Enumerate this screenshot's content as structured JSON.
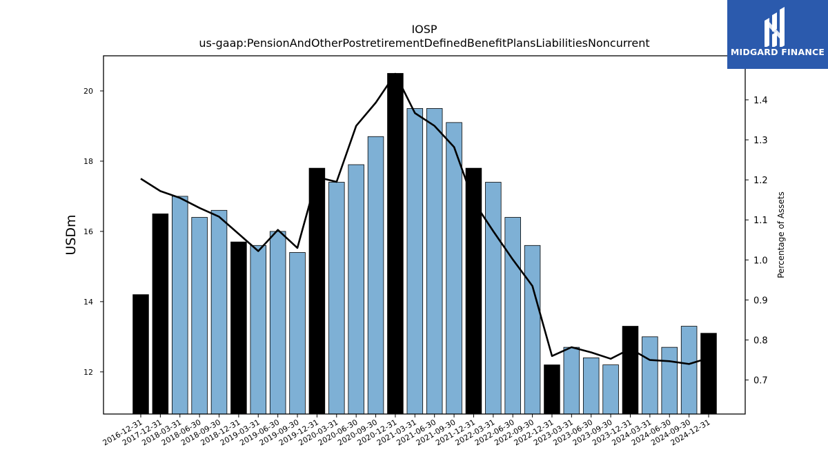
{
  "chart_data": {
    "type": "bar",
    "title": "IOSP",
    "subtitle": "us-gaap:PensionAndOtherPostretirementDefinedBenefitPlansLiabilitiesNoncurrent",
    "ylabel": "USDm",
    "ylabel_right": "Percentage of Assets",
    "ylim": [
      10.8,
      21.0
    ],
    "ylim_right": [
      0.615,
      1.51
    ],
    "yticks": [
      12,
      14,
      16,
      18,
      20
    ],
    "yticks_right": [
      0.7,
      0.8,
      0.9,
      1.0,
      1.1,
      1.2,
      1.3,
      1.4
    ],
    "categories": [
      "2016-12-31",
      "2017-12-31",
      "2018-03-31",
      "2018-06-30",
      "2018-09-30",
      "2018-12-31",
      "2019-03-31",
      "2019-06-30",
      "2019-09-30",
      "2019-12-31",
      "2020-03-31",
      "2020-06-30",
      "2020-09-30",
      "2020-12-31",
      "2021-03-31",
      "2021-06-30",
      "2021-09-30",
      "2021-12-31",
      "2022-03-31",
      "2022-06-30",
      "2022-09-30",
      "2022-12-31",
      "2023-03-31",
      "2023-06-30",
      "2023-09-30",
      "2023-12-31",
      "2024-03-31",
      "2024-06-30",
      "2024-09-30",
      "2024-12-31"
    ],
    "series": [
      {
        "axis": "left",
        "kind": "bar",
        "values": [
          14.2,
          16.5,
          17.0,
          16.4,
          16.6,
          15.7,
          15.6,
          16.0,
          15.4,
          17.8,
          17.4,
          17.9,
          18.7,
          20.5,
          19.5,
          19.5,
          19.1,
          17.8,
          17.4,
          16.4,
          15.6,
          12.2,
          12.7,
          12.4,
          12.2,
          13.3,
          13.0,
          12.7,
          13.3,
          13.1
        ],
        "highlight": [
          true,
          true,
          false,
          false,
          false,
          true,
          false,
          false,
          false,
          true,
          false,
          false,
          false,
          true,
          false,
          false,
          false,
          true,
          false,
          false,
          false,
          true,
          false,
          false,
          false,
          true,
          false,
          false,
          false,
          true
        ]
      },
      {
        "axis": "right",
        "kind": "line",
        "values": [
          1.203,
          1.172,
          1.155,
          1.13,
          1.108,
          1.065,
          1.022,
          1.075,
          1.03,
          1.207,
          1.195,
          1.335,
          1.393,
          1.465,
          1.367,
          1.335,
          1.282,
          1.146,
          1.072,
          1.001,
          0.935,
          0.76,
          0.782,
          0.769,
          0.753,
          0.778,
          0.75,
          0.747,
          0.74,
          0.755
        ]
      }
    ],
    "colors": {
      "bar": "#7eb0d5",
      "bar_highlight": "#000000",
      "line": "#000000"
    },
    "grid": false
  },
  "logo": {
    "text": "MIDGARD FINANCE",
    "icon": "midgard-logo-icon"
  }
}
